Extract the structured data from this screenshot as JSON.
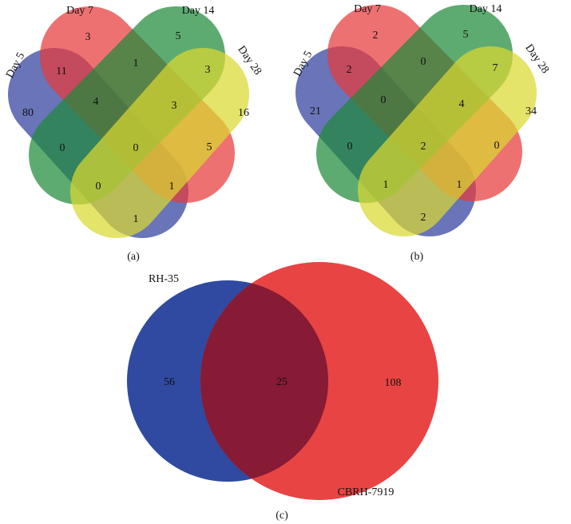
{
  "panels": [
    {
      "caption": "(a)",
      "sets": [
        "Day 5",
        "Day 7",
        "Day 14",
        "Day 28"
      ],
      "regions": [
        3,
        5,
        11,
        1,
        3,
        80,
        4,
        3,
        16,
        0,
        0,
        5,
        0,
        1,
        1
      ]
    },
    {
      "caption": "(b)",
      "sets": [
        "Day 5",
        "Day 7",
        "Day 14",
        "Day 28"
      ],
      "regions": [
        2,
        5,
        2,
        0,
        7,
        21,
        0,
        4,
        34,
        0,
        2,
        0,
        1,
        1,
        2
      ]
    },
    {
      "caption": "(c)",
      "sets": [
        "RH-35",
        "CBRH-7919"
      ],
      "regions": [
        56,
        25,
        108
      ]
    }
  ]
}
